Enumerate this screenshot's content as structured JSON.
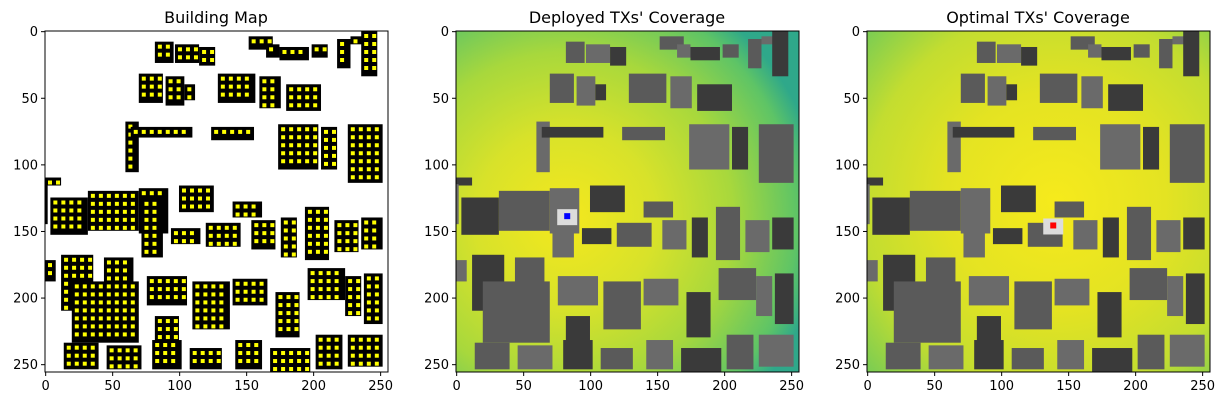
{
  "chart_data": [
    {
      "type": "heatmap",
      "title": "Building Map",
      "xlim": [
        0,
        255
      ],
      "ylim": [
        255,
        0
      ],
      "xticks": [
        0,
        50,
        100,
        150,
        200,
        250
      ],
      "yticks": [
        0,
        50,
        100,
        150,
        200,
        250
      ],
      "colors": {
        "background": "#ffffff",
        "building": "#000000",
        "marker": "#ffff00"
      }
    },
    {
      "type": "heatmap",
      "title": "Deployed TXs' Coverage",
      "xlim": [
        0,
        255
      ],
      "ylim": [
        255,
        0
      ],
      "xticks": [
        0,
        50,
        100,
        150,
        200,
        250
      ],
      "yticks": [
        0,
        50,
        100,
        150,
        200,
        250
      ],
      "transmitter": {
        "x": 83,
        "y": 139,
        "color": "#0000ff"
      },
      "colors": {
        "high": "#e8e51f",
        "mid": "#a6d93b",
        "low": "#22a884",
        "building": "#5a5a5a"
      }
    },
    {
      "type": "heatmap",
      "title": "Optimal TXs' Coverage",
      "xlim": [
        0,
        255
      ],
      "ylim": [
        255,
        0
      ],
      "xticks": [
        0,
        50,
        100,
        150,
        200,
        250
      ],
      "yticks": [
        0,
        50,
        100,
        150,
        200,
        250
      ],
      "transmitter": {
        "x": 139,
        "y": 146,
        "color": "#ff0000"
      },
      "colors": {
        "high": "#f0e51c",
        "mid": "#bfe03a",
        "low": "#3fb87a",
        "building": "#5a5a5a"
      }
    }
  ]
}
